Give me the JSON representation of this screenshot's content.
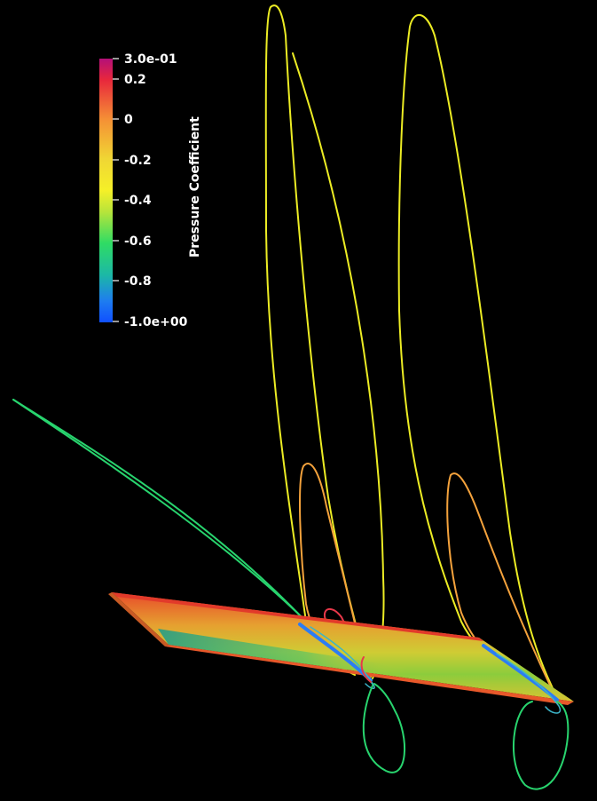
{
  "colorbar": {
    "title": "Pressure Coefficient",
    "range": [
      -1.0,
      0.3
    ],
    "ticks": [
      "3.0e-01",
      "0.2",
      "0",
      "-0.2",
      "-0.4",
      "-0.6",
      "-0.8",
      "-1.0e+00"
    ],
    "colors": [
      "#b40f78",
      "#e8273c",
      "#f59035",
      "#f0d634",
      "#f5f028",
      "#b8e43a",
      "#2fdc64",
      "#1cb8a6",
      "#1e7cf0",
      "#1050ff"
    ]
  },
  "scene": {
    "background": "#000000",
    "stream_colors": {
      "yellow": "#ecec24",
      "orange": "#f4a23c",
      "red": "#e8384a",
      "green": "#28d46e",
      "blue": "#2c7cf4",
      "cyan": "#3cb4c8"
    }
  }
}
